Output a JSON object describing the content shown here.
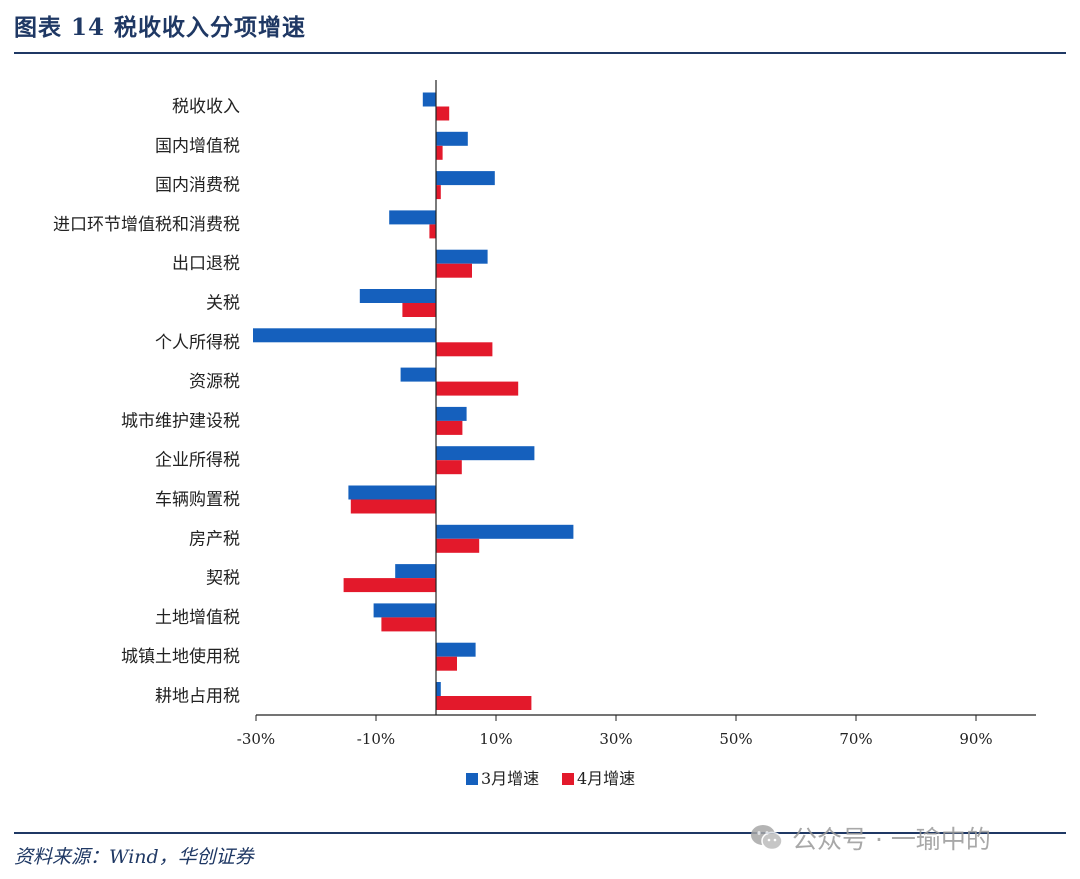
{
  "header": {
    "title": "图表 14    税收收入分项增速"
  },
  "footer": {
    "source": "资料来源：Wind，华创证券"
  },
  "watermark": {
    "text": "公众号 · 一瑜中的",
    "icon": "wechat-icon"
  },
  "colors": {
    "navy": "#1f3864",
    "series_march": "#1560bd",
    "series_april": "#e3192b"
  },
  "chart_data": {
    "type": "bar",
    "orientation": "horizontal",
    "categories": [
      "税收收入",
      "国内增值税",
      "国内消费税",
      "进口环节增值税和消费税",
      "出口退税",
      "关税",
      "个人所得税",
      "资源税",
      "城市维护建设税",
      "企业所得税",
      "车辆购置税",
      "房产税",
      "契税",
      "土地增值税",
      "城镇土地使用税",
      "耕地占用税"
    ],
    "series": [
      {
        "name": "3月增速",
        "color": "#1560bd",
        "values": [
          -2.2,
          5.3,
          9.8,
          -7.8,
          8.6,
          -12.7,
          -30.5,
          -5.9,
          5.1,
          16.4,
          -14.6,
          22.9,
          -6.8,
          -10.4,
          6.6,
          0.8
        ]
      },
      {
        "name": "4月增速",
        "color": "#e3192b",
        "values": [
          2.2,
          1.1,
          0.8,
          -1.1,
          6.0,
          -5.6,
          9.4,
          13.7,
          4.4,
          4.3,
          -14.2,
          7.2,
          -15.4,
          -9.1,
          3.5,
          15.9
        ]
      }
    ],
    "xlim": [
      -30,
      100
    ],
    "xticks": [
      "-30%",
      "-10%",
      "10%",
      "30%",
      "50%",
      "70%",
      "90%"
    ],
    "xtick_values": [
      -30,
      -10,
      10,
      30,
      50,
      70,
      90
    ],
    "legend": "bottom-center",
    "grid": false
  }
}
